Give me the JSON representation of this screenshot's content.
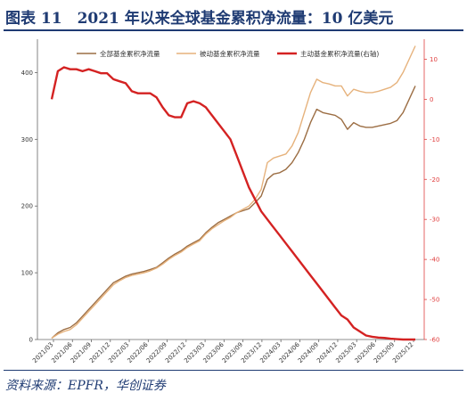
{
  "header": {
    "title": "图表 11　2021 年以来全球基金累积净流量：10 亿美元",
    "source": "资料来源：EPFR，华创证券"
  },
  "colors": {
    "all": "#9c6e44",
    "passive": "#e6b27c",
    "active": "#d42222",
    "title": "#1f3b73",
    "right_axis": "#e04040"
  },
  "chart_data": {
    "type": "line",
    "title": "",
    "xlabel": "",
    "ylabel_left": "",
    "ylabel_right": "",
    "ylim_left": [
      0,
      450
    ],
    "ylim_right": [
      -60,
      15
    ],
    "yticks_left": [
      "0",
      "100",
      "200",
      "300",
      "400"
    ],
    "yticks_right": [
      "10",
      "0",
      "-10",
      "-20",
      "-30",
      "-40",
      "-50",
      "-60"
    ],
    "xticks": [
      "2021/03",
      "2021/06",
      "2021/09",
      "2021/12",
      "2022/03",
      "2022/06",
      "2022/09",
      "2022/12",
      "2023/03",
      "2023/06",
      "2023/09",
      "2023/12",
      "2024/03",
      "2024/06",
      "2024/09",
      "2024/12",
      "2025/03",
      "2025/06",
      "2025/09",
      "2025/12"
    ],
    "legend_position": "top-center",
    "x": [
      "2021/01",
      "2021/02",
      "2021/03",
      "2021/04",
      "2021/05",
      "2021/06",
      "2021/07",
      "2021/08",
      "2021/09",
      "2021/10",
      "2021/11",
      "2021/12",
      "2022/01",
      "2022/02",
      "2022/03",
      "2022/04",
      "2022/05",
      "2022/06",
      "2022/07",
      "2022/08",
      "2022/09",
      "2022/10",
      "2022/11",
      "2022/12",
      "2023/01",
      "2023/02",
      "2023/03",
      "2023/04",
      "2023/05",
      "2023/06",
      "2023/07",
      "2023/08",
      "2023/09",
      "2023/10",
      "2023/11",
      "2023/12",
      "2024/01",
      "2024/02",
      "2024/03",
      "2024/04",
      "2024/05",
      "2024/06",
      "2024/07",
      "2024/08",
      "2024/09",
      "2024/10",
      "2024/11",
      "2024/12",
      "2025/01",
      "2025/02",
      "2025/03",
      "2025/04",
      "2025/05",
      "2025/06",
      "2025/07",
      "2025/08",
      "2025/09",
      "2025/10",
      "2025/11",
      "2025/12"
    ],
    "series": [
      {
        "name": "全部基金累积净流量",
        "axis": "left",
        "values": [
          2,
          10,
          15,
          18,
          25,
          35,
          45,
          55,
          65,
          75,
          85,
          90,
          95,
          98,
          100,
          102,
          105,
          108,
          115,
          122,
          128,
          133,
          140,
          145,
          150,
          160,
          168,
          175,
          180,
          185,
          190,
          193,
          196,
          205,
          215,
          240,
          248,
          250,
          255,
          265,
          280,
          300,
          325,
          345,
          340,
          338,
          336,
          330,
          315,
          325,
          320,
          318,
          318,
          320,
          322,
          324,
          328,
          340,
          360,
          380
        ]
      },
      {
        "name": "被动基金累积净流量",
        "axis": "left",
        "values": [
          2,
          8,
          12,
          15,
          22,
          32,
          42,
          52,
          62,
          72,
          82,
          88,
          93,
          96,
          98,
          100,
          103,
          107,
          113,
          120,
          126,
          131,
          138,
          143,
          148,
          158,
          166,
          172,
          178,
          183,
          190,
          195,
          200,
          210,
          225,
          265,
          272,
          275,
          278,
          290,
          310,
          340,
          370,
          390,
          385,
          383,
          380,
          380,
          365,
          375,
          372,
          370,
          370,
          372,
          375,
          378,
          385,
          400,
          420,
          440
        ]
      },
      {
        "name": "主动基金累积净流量(右轴)",
        "axis": "right",
        "values": [
          0,
          7,
          8,
          7.5,
          7.5,
          7,
          7.5,
          7,
          6.5,
          6.5,
          5,
          4.5,
          4,
          2,
          1.5,
          1.5,
          1.5,
          0.5,
          -2,
          -4,
          -4.5,
          -4.5,
          -1,
          -0.5,
          -1,
          -2,
          -4,
          -6,
          -8,
          -10,
          -14,
          -18,
          -22,
          -25,
          -28,
          -30,
          -32,
          -34,
          -36,
          -38,
          -40,
          -42,
          -44,
          -46,
          -48,
          -50,
          -52,
          -54,
          -55,
          -57,
          -58,
          -59,
          -59.3,
          -59.5,
          -59.6,
          -59.8,
          -59.9,
          -60,
          -60,
          -60
        ]
      }
    ]
  }
}
